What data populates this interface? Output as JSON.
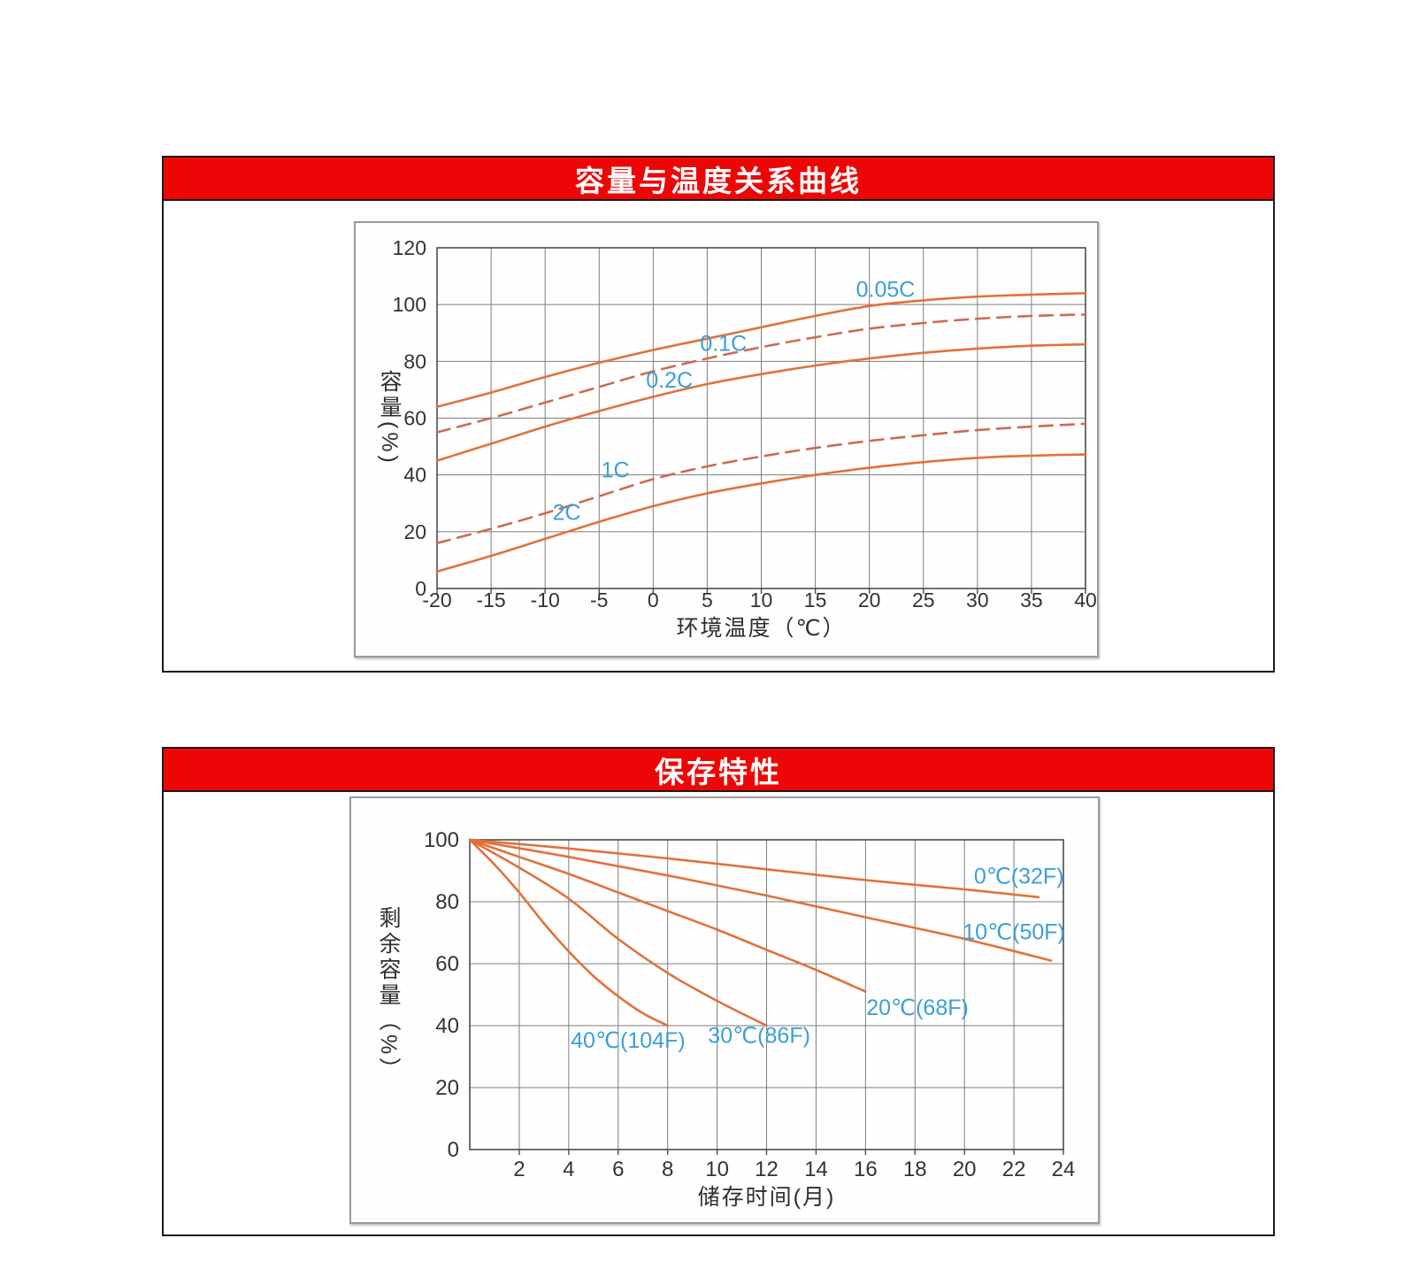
{
  "page": {
    "background": "#ffffff"
  },
  "banner_style": {
    "bg": "#ee0606",
    "text_color": "#ffffff",
    "border_color": "#1b1b1b"
  },
  "palette": {
    "solid_curve": "#e2713a",
    "dashed_curve": "#cf6a4e",
    "curve_label": "#3b9fd8",
    "grid": "#7d7d7d",
    "frame": "#4c4c4c",
    "tick_text": "#333333"
  },
  "chart_data": [
    {
      "type": "line",
      "title": "容量与温度关系曲线",
      "xlabel": "环境温度（℃）",
      "ylabel": "容量(%)",
      "xlim": [
        -20,
        40
      ],
      "ylim": [
        0,
        120
      ],
      "xticks": [
        -20,
        -15,
        -10,
        -5,
        0,
        5,
        10,
        15,
        20,
        25,
        30,
        35,
        40
      ],
      "yticks": [
        0,
        20,
        40,
        60,
        80,
        100,
        120
      ],
      "grid": true,
      "legend_position": "inline-labels",
      "series": [
        {
          "name": "0.05C",
          "style": "solid",
          "color": "#e2713a",
          "label_pos": [
            21.5,
            105.5
          ],
          "points": [
            [
              -20,
              64
            ],
            [
              -15,
              69
            ],
            [
              -10,
              74.5
            ],
            [
              -5,
              79.5
            ],
            [
              0,
              84
            ],
            [
              5,
              88
            ],
            [
              10,
              92
            ],
            [
              15,
              96
            ],
            [
              20,
              99.5
            ],
            [
              25,
              101.5
            ],
            [
              30,
              102.8
            ],
            [
              35,
              103.5
            ],
            [
              40,
              104
            ]
          ]
        },
        {
          "name": "0.1C",
          "style": "dashed",
          "color": "#cf6a4e",
          "label_pos": [
            6.5,
            86.5
          ],
          "points": [
            [
              -20,
              55
            ],
            [
              -15,
              60
            ],
            [
              -10,
              65.5
            ],
            [
              -5,
              71
            ],
            [
              0,
              76.5
            ],
            [
              5,
              81
            ],
            [
              10,
              85
            ],
            [
              15,
              88.5
            ],
            [
              20,
              91.5
            ],
            [
              25,
              93.5
            ],
            [
              30,
              95
            ],
            [
              35,
              96
            ],
            [
              40,
              96.5
            ]
          ]
        },
        {
          "name": "0.2C",
          "style": "solid",
          "color": "#e2713a",
          "label_pos": [
            1.5,
            73.5
          ],
          "points": [
            [
              -20,
              45
            ],
            [
              -15,
              51
            ],
            [
              -10,
              57
            ],
            [
              -5,
              62.5
            ],
            [
              0,
              67.5
            ],
            [
              5,
              72
            ],
            [
              10,
              75.5
            ],
            [
              15,
              78.5
            ],
            [
              20,
              81
            ],
            [
              25,
              83
            ],
            [
              30,
              84.5
            ],
            [
              35,
              85.5
            ],
            [
              40,
              86
            ]
          ]
        },
        {
          "name": "1C",
          "style": "dashed",
          "color": "#cf6a4e",
          "label_pos": [
            -3.5,
            42
          ],
          "points": [
            [
              -20,
              16
            ],
            [
              -15,
              21
            ],
            [
              -10,
              26.5
            ],
            [
              -5,
              32.5
            ],
            [
              0,
              38.5
            ],
            [
              5,
              43
            ],
            [
              10,
              46.5
            ],
            [
              15,
              49.5
            ],
            [
              20,
              52
            ],
            [
              25,
              54
            ],
            [
              30,
              55.8
            ],
            [
              35,
              57
            ],
            [
              40,
              58
            ]
          ]
        },
        {
          "name": "2C",
          "style": "solid",
          "color": "#e2713a",
          "label_pos": [
            -8,
            27
          ],
          "points": [
            [
              -20,
              6
            ],
            [
              -15,
              11.5
            ],
            [
              -10,
              17.5
            ],
            [
              -5,
              23.5
            ],
            [
              0,
              29
            ],
            [
              5,
              33.5
            ],
            [
              10,
              37
            ],
            [
              15,
              40
            ],
            [
              20,
              42.5
            ],
            [
              25,
              44.5
            ],
            [
              30,
              46
            ],
            [
              35,
              46.8
            ],
            [
              40,
              47.2
            ]
          ]
        }
      ]
    },
    {
      "type": "line",
      "title": "保存特性",
      "xlabel": "储存时间(月)",
      "ylabel": "剩余容量（%）",
      "xlim": [
        0,
        24
      ],
      "ylim": [
        0,
        100
      ],
      "xticks": [
        2,
        4,
        6,
        8,
        10,
        12,
        14,
        16,
        18,
        20,
        22,
        24
      ],
      "yticks": [
        0,
        20,
        40,
        60,
        80,
        100
      ],
      "grid": true,
      "legend_position": "inline-labels",
      "series": [
        {
          "name": "0℃(32F)",
          "style": "solid",
          "color": "#e2713a",
          "label_pos": [
            22.2,
            88.5
          ],
          "points": [
            [
              0,
              100
            ],
            [
              4,
              97.2
            ],
            [
              8,
              94
            ],
            [
              12,
              90.5
            ],
            [
              16,
              87
            ],
            [
              20,
              84
            ],
            [
              23,
              81.5
            ]
          ]
        },
        {
          "name": "10℃(50F)",
          "style": "solid",
          "color": "#e2713a",
          "label_pos": [
            22,
            70.5
          ],
          "points": [
            [
              0,
              100
            ],
            [
              4,
              94.5
            ],
            [
              8,
              88.5
            ],
            [
              12,
              82
            ],
            [
              16,
              75
            ],
            [
              20,
              68
            ],
            [
              23.5,
              61
            ]
          ]
        },
        {
          "name": "20℃(68F)",
          "style": "solid",
          "color": "#e2713a",
          "label_pos": [
            18.1,
            46
          ],
          "points": [
            [
              0,
              100
            ],
            [
              2,
              94.5
            ],
            [
              4,
              89
            ],
            [
              6,
              83
            ],
            [
              8,
              77
            ],
            [
              10,
              71
            ],
            [
              12,
              64.5
            ],
            [
              14,
              58
            ],
            [
              16,
              51
            ]
          ]
        },
        {
          "name": "30℃(86F)",
          "style": "solid",
          "color": "#e2713a",
          "label_pos": [
            11.7,
            37
          ],
          "points": [
            [
              0,
              100
            ],
            [
              2,
              91
            ],
            [
              4,
              81
            ],
            [
              6,
              68
            ],
            [
              8,
              57
            ],
            [
              10,
              48
            ],
            [
              12,
              40
            ]
          ]
        },
        {
          "name": "40℃(104F)",
          "style": "solid",
          "color": "#e2713a",
          "label_pos": [
            6.4,
            35.5
          ],
          "points": [
            [
              0,
              100
            ],
            [
              1,
              92
            ],
            [
              2,
              83
            ],
            [
              3,
              73
            ],
            [
              4,
              64
            ],
            [
              5,
              56
            ],
            [
              6,
              49.5
            ],
            [
              7,
              44
            ],
            [
              8,
              40
            ]
          ]
        }
      ]
    }
  ]
}
